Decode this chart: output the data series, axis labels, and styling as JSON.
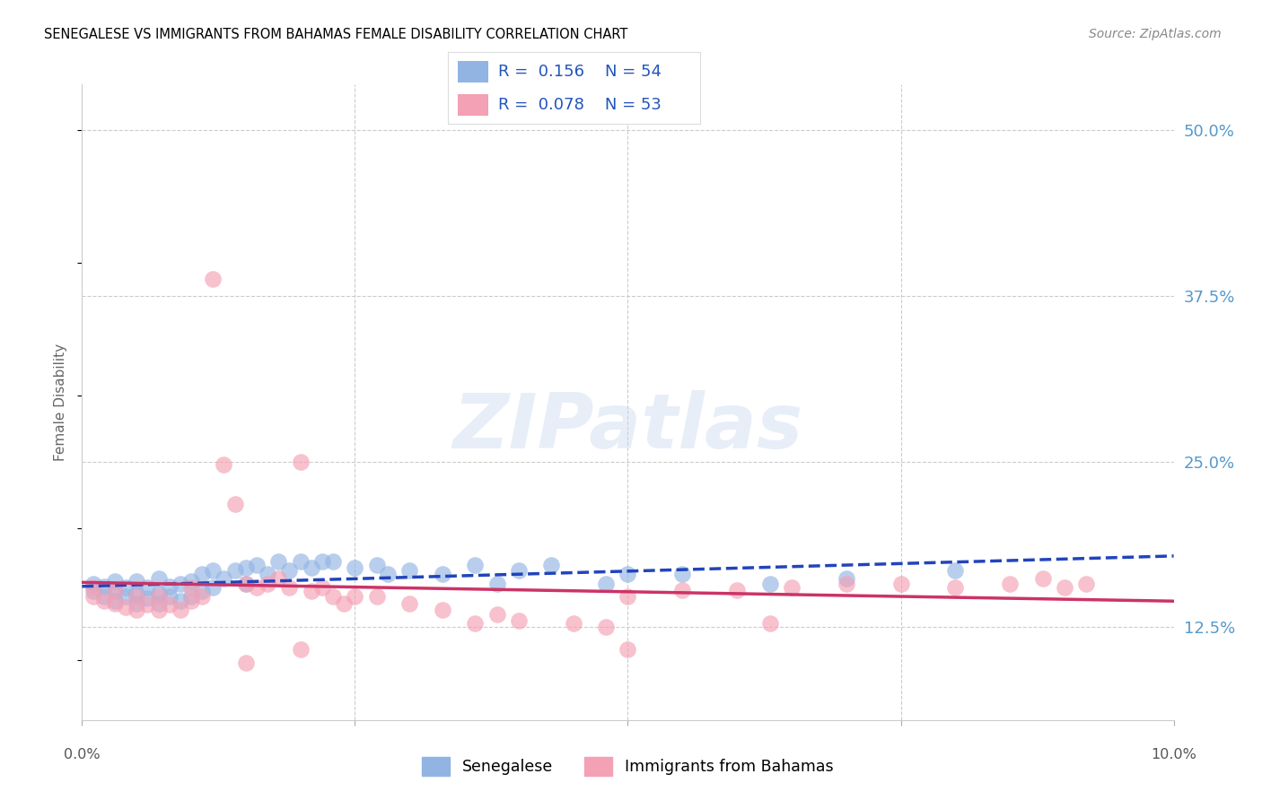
{
  "title": "SENEGALESE VS IMMIGRANTS FROM BAHAMAS FEMALE DISABILITY CORRELATION CHART",
  "source": "Source: ZipAtlas.com",
  "ylabel": "Female Disability",
  "ytick_labels": [
    "12.5%",
    "25.0%",
    "37.5%",
    "50.0%"
  ],
  "ytick_values": [
    0.125,
    0.25,
    0.375,
    0.5
  ],
  "xmin": 0.0,
  "xmax": 0.1,
  "ymin": 0.055,
  "ymax": 0.535,
  "legend1_R": "0.156",
  "legend1_N": "54",
  "legend2_R": "0.078",
  "legend2_N": "53",
  "color_blue": "#92b4e3",
  "color_pink": "#f4a0b5",
  "trendline_blue": "#2244bb",
  "trendline_pink": "#cc3366",
  "watermark": "ZIPatlas",
  "legend_label1": "Senegalese",
  "legend_label2": "Immigrants from Bahamas",
  "blue_x": [
    0.001,
    0.001,
    0.002,
    0.002,
    0.003,
    0.003,
    0.003,
    0.004,
    0.004,
    0.005,
    0.005,
    0.005,
    0.006,
    0.006,
    0.007,
    0.007,
    0.007,
    0.008,
    0.008,
    0.009,
    0.009,
    0.01,
    0.01,
    0.011,
    0.011,
    0.012,
    0.012,
    0.013,
    0.014,
    0.015,
    0.015,
    0.016,
    0.017,
    0.018,
    0.019,
    0.02,
    0.021,
    0.022,
    0.023,
    0.025,
    0.027,
    0.028,
    0.03,
    0.033,
    0.036,
    0.038,
    0.04,
    0.043,
    0.048,
    0.05,
    0.055,
    0.063,
    0.07,
    0.08
  ],
  "blue_y": [
    0.152,
    0.158,
    0.148,
    0.156,
    0.145,
    0.152,
    0.16,
    0.148,
    0.155,
    0.143,
    0.15,
    0.16,
    0.147,
    0.155,
    0.143,
    0.15,
    0.162,
    0.148,
    0.156,
    0.145,
    0.158,
    0.148,
    0.16,
    0.152,
    0.165,
    0.155,
    0.168,
    0.162,
    0.168,
    0.158,
    0.17,
    0.172,
    0.165,
    0.175,
    0.168,
    0.175,
    0.17,
    0.175,
    0.175,
    0.17,
    0.172,
    0.165,
    0.168,
    0.165,
    0.172,
    0.158,
    0.168,
    0.172,
    0.158,
    0.165,
    0.165,
    0.158,
    0.162,
    0.168
  ],
  "pink_x": [
    0.001,
    0.001,
    0.002,
    0.003,
    0.003,
    0.004,
    0.005,
    0.005,
    0.006,
    0.007,
    0.007,
    0.008,
    0.009,
    0.01,
    0.01,
    0.011,
    0.012,
    0.013,
    0.014,
    0.015,
    0.016,
    0.017,
    0.018,
    0.019,
    0.02,
    0.021,
    0.022,
    0.023,
    0.024,
    0.025,
    0.027,
    0.03,
    0.033,
    0.036,
    0.038,
    0.04,
    0.045,
    0.048,
    0.05,
    0.055,
    0.06,
    0.063,
    0.065,
    0.07,
    0.075,
    0.08,
    0.085,
    0.088,
    0.09,
    0.092,
    0.015,
    0.02,
    0.05
  ],
  "pink_y": [
    0.148,
    0.155,
    0.145,
    0.143,
    0.152,
    0.14,
    0.138,
    0.148,
    0.142,
    0.138,
    0.148,
    0.142,
    0.138,
    0.145,
    0.155,
    0.148,
    0.388,
    0.248,
    0.218,
    0.158,
    0.155,
    0.158,
    0.162,
    0.155,
    0.25,
    0.152,
    0.155,
    0.148,
    0.143,
    0.148,
    0.148,
    0.143,
    0.138,
    0.128,
    0.135,
    0.13,
    0.128,
    0.125,
    0.148,
    0.153,
    0.153,
    0.128,
    0.155,
    0.158,
    0.158,
    0.155,
    0.158,
    0.162,
    0.155,
    0.158,
    0.098,
    0.108,
    0.108
  ]
}
